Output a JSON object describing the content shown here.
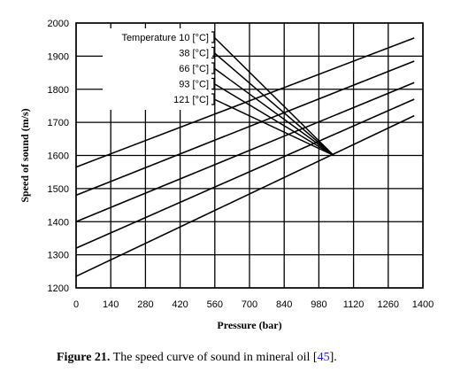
{
  "chart_data": {
    "type": "line",
    "xlabel": "Pressure (bar)",
    "ylabel": "Speed of sound (m/s)",
    "xlim": [
      0,
      1400
    ],
    "ylim": [
      1200,
      2000
    ],
    "xticks": [
      0,
      140,
      280,
      420,
      560,
      700,
      840,
      980,
      1120,
      1260,
      1400
    ],
    "yticks": [
      1200,
      1300,
      1400,
      1500,
      1600,
      1700,
      1800,
      1900,
      2000
    ],
    "grid": true,
    "legend_title": "Temperature",
    "series": [
      {
        "name": "10 [°C]",
        "x": [
          0,
          1365
        ],
        "y": [
          1565,
          1955
        ]
      },
      {
        "name": "38 [°C]",
        "x": [
          0,
          1365
        ],
        "y": [
          1480,
          1885
        ]
      },
      {
        "name": "66 [°C]",
        "x": [
          0,
          1365
        ],
        "y": [
          1400,
          1820
        ]
      },
      {
        "name": "93 [°C]",
        "x": [
          0,
          1365
        ],
        "y": [
          1320,
          1770
        ]
      },
      {
        "name": "121 [°C]",
        "x": [
          0,
          1365
        ],
        "y": [
          1235,
          1720
        ]
      }
    ],
    "legend_connector_end": {
      "x": 1040,
      "y": 1600
    }
  },
  "caption": {
    "label": "Figure 21.",
    "text": " The speed curve of sound in mineral oil [",
    "ref": "45",
    "end": "]."
  }
}
